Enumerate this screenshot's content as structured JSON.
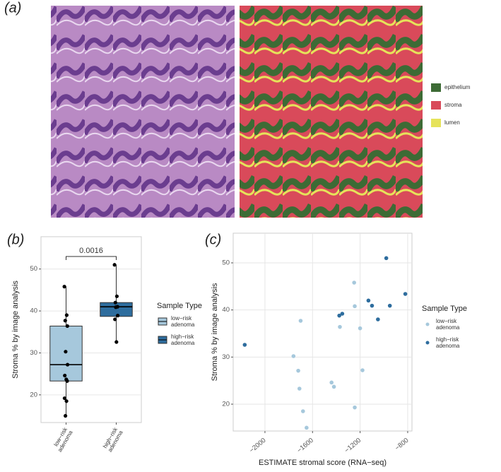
{
  "panel_labels": [
    "(a)",
    "(b)",
    "(c)"
  ],
  "segmentation_legend": [
    {
      "label": "epithelium",
      "color": "#3d6b35"
    },
    {
      "label": "stroma",
      "color": "#d94a5a"
    },
    {
      "label": "lumen",
      "color": "#e6e35a"
    }
  ],
  "chart_data": [
    {
      "type": "box",
      "y_label": "Stroma % by image analysis",
      "annotation": "0.0016",
      "categories": [
        "low−risk adenoma",
        "high−risk adenoma"
      ],
      "legend_title": "Sample Type",
      "ylim": [
        13.4,
        57.7
      ],
      "yticks": [
        20,
        30,
        40,
        50
      ],
      "grid": true,
      "series": [
        {
          "name": "low−risk adenoma",
          "color": "#a6c8dc",
          "min": 15,
          "q1": 23.3,
          "median": 27.2,
          "q3": 36.4,
          "max": 45.8,
          "points": [
            45.8,
            39,
            37.7,
            36.4,
            30.3,
            27.2,
            24.6,
            23.7,
            23.3,
            19.2,
            18.5,
            15
          ]
        },
        {
          "name": "high−risk adenoma",
          "color": "#2e6d9e",
          "min": 32.6,
          "q1": 38.7,
          "median": 41,
          "q3": 42,
          "max": 51,
          "points": [
            51,
            43.5,
            42,
            41,
            40.9,
            38.9,
            38,
            32.6
          ]
        }
      ]
    },
    {
      "type": "scatter",
      "x_label": "ESTIMATE stromal score (RNA−seq)",
      "y_label": "Stroma % by image analysis",
      "legend_title": "Sample Type",
      "xlim": [
        -2267,
        -764
      ],
      "ylim": [
        14.3,
        56.3
      ],
      "xticks": [
        {
          "value": -2000,
          "label": "−2000"
        },
        {
          "value": -1600,
          "label": "−1600"
        },
        {
          "value": -1200,
          "label": "−1200"
        },
        {
          "value": -800,
          "label": "−800"
        }
      ],
      "yticks": [
        20,
        30,
        40,
        50
      ],
      "grid": true,
      "series": [
        {
          "name": "low−risk adenoma",
          "color": "#a6c8dc",
          "x": [
            -1250,
            -1245,
            -1370,
            -1200,
            -1700,
            -1760,
            -1720,
            -1180,
            -1440,
            -1420,
            -1710,
            -1245,
            -1680,
            -1650
          ],
          "values": [
            45.8,
            40.8,
            36.4,
            36.1,
            37.7,
            30.2,
            27.1,
            27.2,
            24.6,
            23.7,
            23.3,
            19.3,
            18.5,
            15
          ]
        },
        {
          "name": "high−risk adenoma",
          "color": "#2e6d9e",
          "x": [
            -2170,
            -1375,
            -1350,
            -1130,
            -1100,
            -1050,
            -980,
            -950,
            -820
          ],
          "values": [
            32.6,
            38.8,
            39.2,
            42,
            40.9,
            38,
            51,
            40.9,
            43.4
          ]
        }
      ]
    }
  ]
}
